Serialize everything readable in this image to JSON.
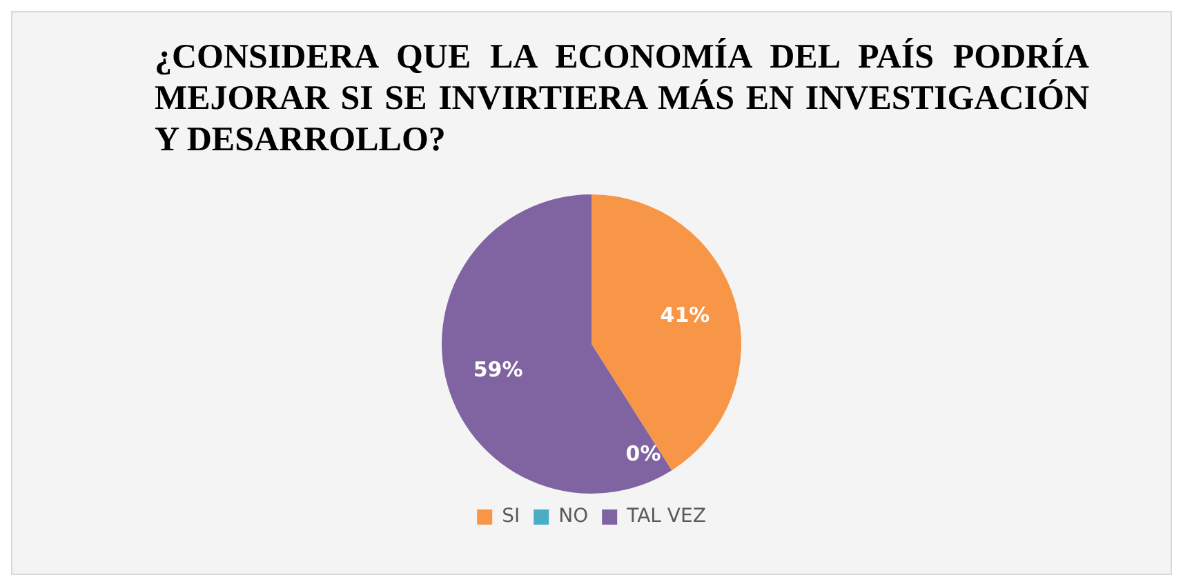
{
  "chart_data": {
    "type": "pie",
    "title": "¿CONSIDERA QUE LA ECONOMÍA DEL PAÍS PODRÍA MEJORAR SI SE INVIRTIERA MÁS EN INVESTIGACIÓN Y DESARROLLO?",
    "categories": [
      "SI",
      "NO",
      "TAL VEZ"
    ],
    "values": [
      41,
      0,
      59
    ],
    "colors": [
      "#f79646",
      "#4bacc6",
      "#8064a2"
    ],
    "value_labels": [
      "41%",
      "0%",
      "59%"
    ],
    "legend": "bottom"
  }
}
